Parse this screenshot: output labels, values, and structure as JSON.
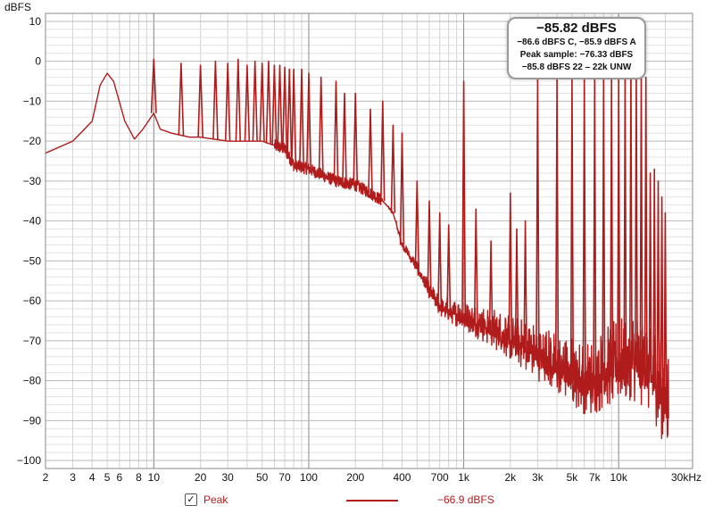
{
  "chart_data": {
    "type": "line",
    "title": "",
    "ylabel": "dBFS",
    "xlabel": "",
    "x_scale": "log",
    "xlim": [
      2,
      30000
    ],
    "ylim": [
      -102,
      12
    ],
    "grid": true,
    "x_ticks": [
      {
        "v": 2,
        "t": "2"
      },
      {
        "v": 3,
        "t": "3"
      },
      {
        "v": 4,
        "t": "4"
      },
      {
        "v": 5,
        "t": "5"
      },
      {
        "v": 6,
        "t": "6"
      },
      {
        "v": 8,
        "t": "8"
      },
      {
        "v": 10,
        "t": "10"
      },
      {
        "v": 20,
        "t": "20"
      },
      {
        "v": 30,
        "t": "30"
      },
      {
        "v": 50,
        "t": "50"
      },
      {
        "v": 70,
        "t": "70"
      },
      {
        "v": 100,
        "t": "100"
      },
      {
        "v": 200,
        "t": "200"
      },
      {
        "v": 400,
        "t": "400"
      },
      {
        "v": 700,
        "t": "700"
      },
      {
        "v": 1000,
        "t": "1k"
      },
      {
        "v": 2000,
        "t": "2k"
      },
      {
        "v": 3000,
        "t": "3k"
      },
      {
        "v": 5000,
        "t": "5k"
      },
      {
        "v": 7000,
        "t": "7k"
      },
      {
        "v": 10000,
        "t": "10k"
      },
      {
        "v": 30000,
        "t": "30kHz"
      }
    ],
    "y_ticks": [
      {
        "v": 10,
        "t": "10"
      },
      {
        "v": 0,
        "t": "0"
      },
      {
        "v": -10,
        "t": "−10"
      },
      {
        "v": -20,
        "t": "−20"
      },
      {
        "v": -30,
        "t": "−30"
      },
      {
        "v": -40,
        "t": "−40"
      },
      {
        "v": -50,
        "t": "−50"
      },
      {
        "v": -60,
        "t": "−60"
      },
      {
        "v": -70,
        "t": "−70"
      },
      {
        "v": -80,
        "t": "−80"
      },
      {
        "v": -90,
        "t": "−90"
      },
      {
        "v": -100,
        "t": "−100"
      }
    ],
    "series": [
      {
        "name": "Peak",
        "color": "#b01c1c",
        "floor": [
          [
            2,
            -23
          ],
          [
            3,
            -20
          ],
          [
            4,
            -15
          ],
          [
            4.5,
            -6
          ],
          [
            5,
            -3
          ],
          [
            5.5,
            -5
          ],
          [
            6.5,
            -15
          ],
          [
            7.5,
            -19.5
          ],
          [
            8.5,
            -17
          ],
          [
            10,
            -13
          ],
          [
            11,
            -17
          ],
          [
            13,
            -18
          ],
          [
            17,
            -19
          ],
          [
            20,
            -19
          ],
          [
            30,
            -20
          ],
          [
            50,
            -20
          ],
          [
            70,
            -22
          ],
          [
            80,
            -26
          ],
          [
            100,
            -27
          ],
          [
            150,
            -30
          ],
          [
            200,
            -31
          ],
          [
            250,
            -33
          ],
          [
            300,
            -35
          ],
          [
            350,
            -38
          ],
          [
            400,
            -46
          ],
          [
            500,
            -52
          ],
          [
            600,
            -58
          ],
          [
            700,
            -62
          ],
          [
            1000,
            -65
          ],
          [
            1500,
            -68
          ],
          [
            2000,
            -71
          ],
          [
            3000,
            -75
          ],
          [
            4000,
            -78
          ],
          [
            5000,
            -80
          ],
          [
            6000,
            -82
          ],
          [
            7000,
            -82
          ],
          [
            8000,
            -80
          ],
          [
            9000,
            -79
          ],
          [
            10000,
            -78
          ],
          [
            12000,
            -77
          ],
          [
            15000,
            -79
          ],
          [
            17000,
            -82
          ],
          [
            19000,
            -86
          ],
          [
            20000,
            -88
          ],
          [
            21000,
            -88
          ]
        ],
        "peaks": [
          [
            10,
            0.5
          ],
          [
            15,
            -0.5
          ],
          [
            20,
            -1
          ],
          [
            25,
            0
          ],
          [
            30,
            -0.5
          ],
          [
            35,
            0.5
          ],
          [
            40,
            -1
          ],
          [
            45,
            0
          ],
          [
            50,
            -0.5
          ],
          [
            55,
            0
          ],
          [
            60,
            -1
          ],
          [
            65,
            -1
          ],
          [
            70,
            -1.5
          ],
          [
            75,
            -2
          ],
          [
            80,
            -2
          ],
          [
            90,
            -2
          ],
          [
            100,
            -3
          ],
          [
            120,
            -4
          ],
          [
            150,
            -5
          ],
          [
            170,
            -8
          ],
          [
            200,
            -8
          ],
          [
            250,
            -12
          ],
          [
            300,
            -10
          ],
          [
            350,
            -16
          ],
          [
            400,
            -18
          ],
          [
            500,
            -30
          ],
          [
            600,
            -35
          ],
          [
            700,
            -38
          ],
          [
            800,
            -41
          ],
          [
            1000,
            -5
          ],
          [
            1200,
            -37
          ],
          [
            1500,
            -45
          ],
          [
            2000,
            -33
          ],
          [
            2200,
            -42
          ],
          [
            2500,
            -40
          ],
          [
            3000,
            -4
          ],
          [
            4000,
            -4
          ],
          [
            5000,
            -4
          ],
          [
            6000,
            -4
          ],
          [
            7000,
            -4
          ],
          [
            8000,
            -4
          ],
          [
            9000,
            -3
          ],
          [
            10000,
            -4
          ],
          [
            11000,
            -3
          ],
          [
            12000,
            -2
          ],
          [
            13000,
            -3
          ],
          [
            14000,
            -4
          ],
          [
            15000,
            -4
          ],
          [
            16000,
            -28
          ],
          [
            17000,
            -27
          ],
          [
            18000,
            -30
          ],
          [
            19000,
            -34
          ],
          [
            20000,
            -38
          ]
        ]
      }
    ]
  },
  "readout": {
    "main": "−85.82 dBFS",
    "line1": "−86.6 dBFS C, −85.9 dBFS A",
    "line2": "Peak sample: −76.33 dBFS",
    "line3": "−85.8 dBFS 22 – 22k UNW"
  },
  "legend": {
    "checkbox": "✓",
    "name": "Peak",
    "value": "−66.9 dBFS"
  }
}
